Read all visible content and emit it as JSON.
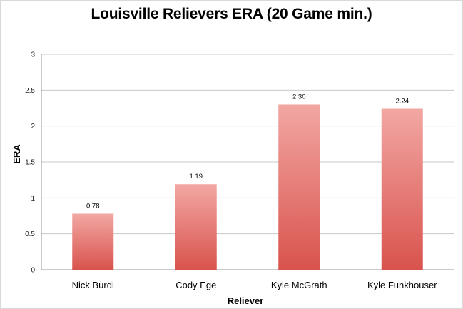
{
  "chart_data": {
    "type": "bar",
    "title": "Louisville Relievers ERA (20 Game min.)",
    "xlabel": "Reliever",
    "ylabel": "ERA",
    "categories": [
      "Nick Burdi",
      "Cody Ege",
      "Kyle McGrath",
      "Kyle Funkhouser"
    ],
    "values": [
      0.78,
      1.19,
      2.3,
      2.24
    ],
    "data_labels": [
      "0.78",
      "1.19",
      "2.30",
      "2.24"
    ],
    "ylim": [
      0,
      3
    ],
    "yticks": [
      0,
      0.5,
      1,
      1.5,
      2,
      2.5,
      3
    ],
    "ytick_labels": [
      "0",
      "0.5",
      "1",
      "1.5",
      "2",
      "2.5",
      "3"
    ],
    "grid": true,
    "legend": "none",
    "colors": {
      "bar_top": "#f2a7a3",
      "bar_bottom": "#d9534d",
      "grid": "#c8c8c8"
    }
  }
}
